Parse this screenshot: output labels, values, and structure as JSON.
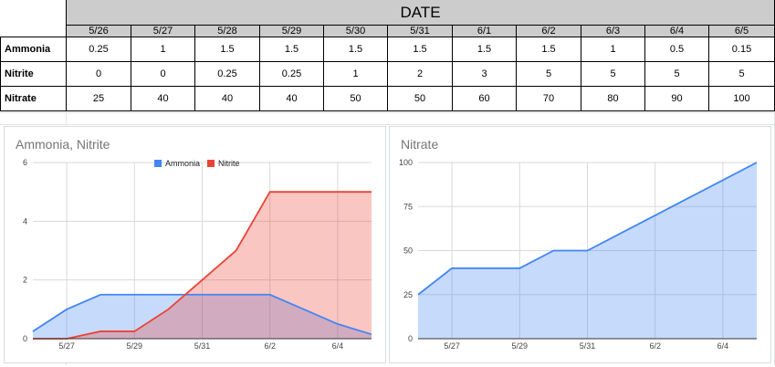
{
  "sheet": {
    "header": "DATE",
    "dates": [
      "5/26",
      "5/27",
      "5/28",
      "5/29",
      "5/30",
      "5/31",
      "6/1",
      "6/2",
      "6/3",
      "6/4",
      "6/5"
    ],
    "rows": [
      {
        "label": "Ammonia",
        "values": [
          "0.25",
          "1",
          "1.5",
          "1.5",
          "1.5",
          "1.5",
          "1.5",
          "1.5",
          "1",
          "0.5",
          "0.15"
        ]
      },
      {
        "label": "Nitrite",
        "values": [
          "0",
          "0",
          "0.25",
          "0.25",
          "1",
          "2",
          "3",
          "5",
          "5",
          "5",
          "5"
        ]
      },
      {
        "label": "Nitrate",
        "values": [
          "25",
          "40",
          "40",
          "40",
          "50",
          "50",
          "60",
          "70",
          "80",
          "90",
          "100"
        ]
      }
    ]
  },
  "chart_data": [
    {
      "type": "area",
      "title": "Ammonia, Nitrite",
      "x": [
        "5/26",
        "5/27",
        "5/28",
        "5/29",
        "5/30",
        "5/31",
        "6/1",
        "6/2",
        "6/3",
        "6/4",
        "6/5"
      ],
      "xticks": [
        "5/27",
        "5/29",
        "5/31",
        "6/2",
        "6/4"
      ],
      "series": [
        {
          "name": "Ammonia",
          "color": "#4285f4",
          "values": [
            0.25,
            1,
            1.5,
            1.5,
            1.5,
            1.5,
            1.5,
            1.5,
            1,
            0.5,
            0.15
          ]
        },
        {
          "name": "Nitrite",
          "color": "#ea4335",
          "values": [
            0,
            0,
            0.25,
            0.25,
            1,
            2,
            3,
            5,
            5,
            5,
            5
          ]
        }
      ],
      "ylim": [
        0,
        6
      ],
      "yticks": [
        "0",
        "2",
        "4",
        "6"
      ],
      "legend": "top",
      "grid": true
    },
    {
      "type": "area",
      "title": "Nitrate",
      "x": [
        "5/26",
        "5/27",
        "5/28",
        "5/29",
        "5/30",
        "5/31",
        "6/1",
        "6/2",
        "6/3",
        "6/4",
        "6/5"
      ],
      "xticks": [
        "5/27",
        "5/29",
        "5/31",
        "6/2",
        "6/4"
      ],
      "series": [
        {
          "name": "Nitrate",
          "color": "#4285f4",
          "values": [
            25,
            40,
            40,
            40,
            50,
            50,
            60,
            70,
            80,
            90,
            100
          ]
        }
      ],
      "ylim": [
        0,
        100
      ],
      "yticks": [
        "0",
        "25",
        "50",
        "75",
        "100"
      ],
      "legend": "none",
      "grid": true
    }
  ]
}
